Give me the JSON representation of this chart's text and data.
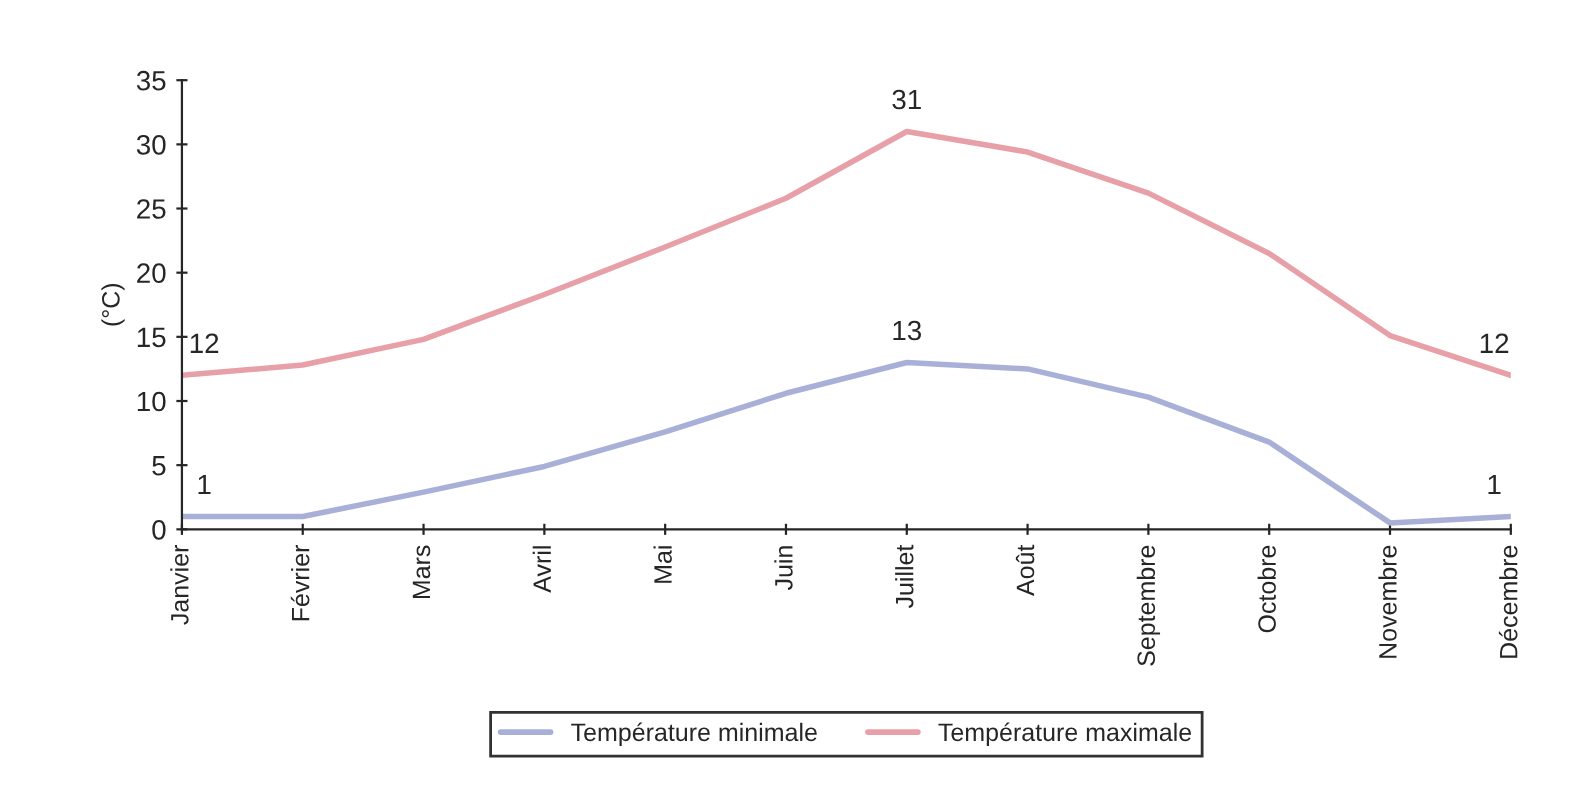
{
  "chart_data": {
    "type": "line",
    "ylabel": "(°C)",
    "categories": [
      "Janvier",
      "Février",
      "Mars",
      "Avril",
      "Mai",
      "Juin",
      "Juillet",
      "Août",
      "Septembre",
      "Octobre",
      "Novembre",
      "Décembre"
    ],
    "series": [
      {
        "name": "Température minimale",
        "color": "#a8b0d8",
        "values": [
          1,
          1,
          2.9,
          4.9,
          7.6,
          10.6,
          13,
          12.5,
          10.3,
          6.8,
          0.5,
          1
        ],
        "value_labels": [
          "1",
          null,
          null,
          null,
          null,
          null,
          "13",
          null,
          null,
          null,
          null,
          "1"
        ]
      },
      {
        "name": "Température maximale",
        "color": "#e8a0a8",
        "values": [
          12,
          12.8,
          14.8,
          18.3,
          22,
          25.8,
          31,
          29.4,
          26.2,
          21.5,
          15.1,
          12
        ],
        "value_labels": [
          "12",
          null,
          null,
          null,
          null,
          null,
          "31",
          null,
          null,
          null,
          null,
          "12"
        ]
      }
    ],
    "ylim": [
      0,
      35
    ],
    "yticks": [
      0,
      5,
      10,
      15,
      20,
      25,
      30,
      35
    ],
    "grid": false,
    "legend": "bottom",
    "marker": "none",
    "line_style": "solid"
  }
}
